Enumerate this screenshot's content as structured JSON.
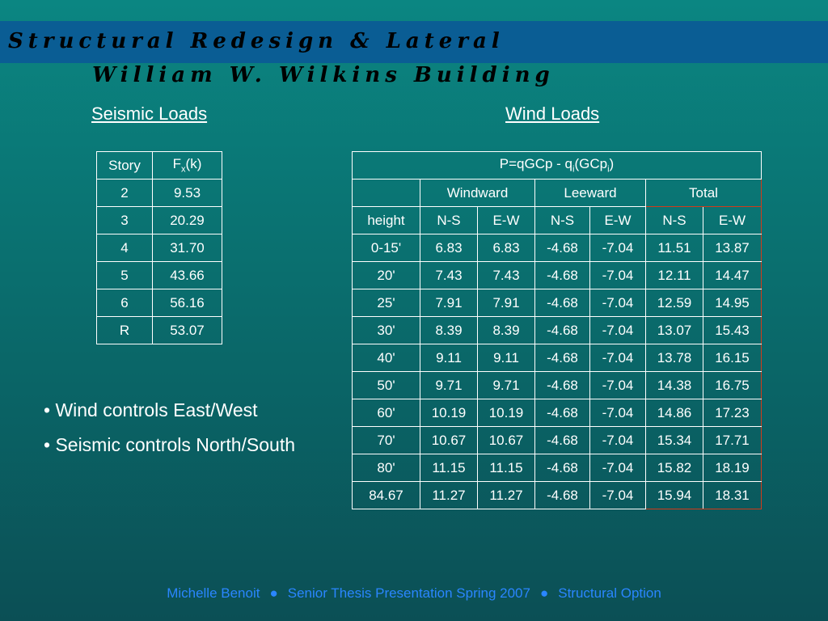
{
  "title": {
    "line1": "Structural Redesign & Lateral",
    "line2": "William W. Wilkins Building"
  },
  "sections": {
    "seismic": "Seismic Loads",
    "wind": "Wind Loads"
  },
  "seismic_table": {
    "headers": [
      "Story",
      "F",
      "x",
      "(k)"
    ],
    "rows": [
      [
        "2",
        "9.53"
      ],
      [
        "3",
        "20.29"
      ],
      [
        "4",
        "31.70"
      ],
      [
        "5",
        "43.66"
      ],
      [
        "6",
        "56.16"
      ],
      [
        "R",
        "53.07"
      ]
    ]
  },
  "wind_table": {
    "formula": {
      "a": "P=qGCp - q",
      "sub1": "i",
      "b": "(GCp",
      "sub2": "i",
      "c": ")"
    },
    "groups": [
      "Windward",
      "Leeward",
      "Total"
    ],
    "columns": [
      "height",
      "N-S",
      "E-W",
      "N-S",
      "E-W",
      "N-S",
      "E-W"
    ],
    "rows": [
      [
        "0-15'",
        "6.83",
        "6.83",
        "-4.68",
        "-7.04",
        "11.51",
        "13.87"
      ],
      [
        "20'",
        "7.43",
        "7.43",
        "-4.68",
        "-7.04",
        "12.11",
        "14.47"
      ],
      [
        "25'",
        "7.91",
        "7.91",
        "-4.68",
        "-7.04",
        "12.59",
        "14.95"
      ],
      [
        "30'",
        "8.39",
        "8.39",
        "-4.68",
        "-7.04",
        "13.07",
        "15.43"
      ],
      [
        "40'",
        "9.11",
        "9.11",
        "-4.68",
        "-7.04",
        "13.78",
        "16.15"
      ],
      [
        "50'",
        "9.71",
        "9.71",
        "-4.68",
        "-7.04",
        "14.38",
        "16.75"
      ],
      [
        "60'",
        "10.19",
        "10.19",
        "-4.68",
        "-7.04",
        "14.86",
        "17.23"
      ],
      [
        "70'",
        "10.67",
        "10.67",
        "-4.68",
        "-7.04",
        "15.34",
        "17.71"
      ],
      [
        "80'",
        "11.15",
        "11.15",
        "-4.68",
        "-7.04",
        "15.82",
        "18.19"
      ],
      [
        "84.67",
        "11.27",
        "11.27",
        "-4.68",
        "-7.04",
        "15.94",
        "18.31"
      ]
    ]
  },
  "bullets": [
    "• Wind controls East/West",
    "• Seismic controls North/South"
  ],
  "footer": {
    "author": "Michelle Benoit",
    "sep": "●",
    "event": "Senior Thesis Presentation Spring 2007",
    "option": "Structural Option"
  },
  "colors": {
    "title_band": "#0a5d94",
    "total_border": "#d23a1a",
    "footer_text": "#2a86ff"
  }
}
